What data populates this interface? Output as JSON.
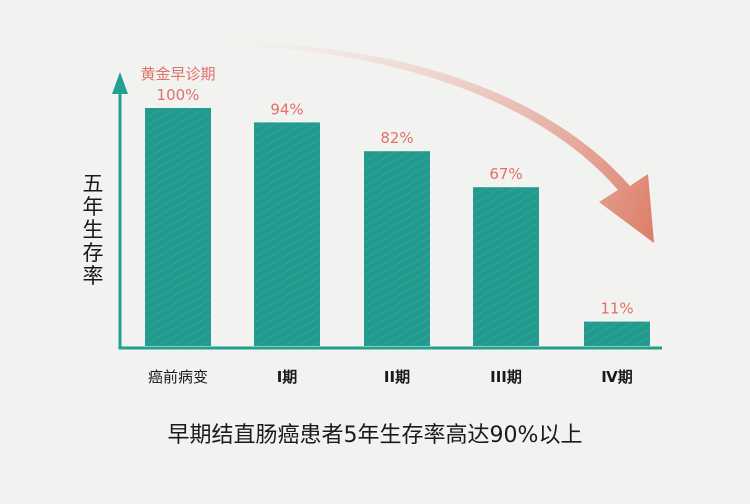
{
  "colors": {
    "bar": "#229b8e",
    "axis": "#21a08f",
    "value_label": "#e0716a",
    "arrow_start": "#f7ece6",
    "arrow_end": "#dc7c66",
    "text": "#1a1a1a",
    "background": "#f2f2f1"
  },
  "chart_data": {
    "type": "bar",
    "title": "早期结直肠癌患者5年生存率高达90%以上",
    "ylabel": "五年生存率",
    "xlabel": "",
    "ylim": [
      0,
      100
    ],
    "categories": [
      "癌前病变",
      "I期",
      "II期",
      "III期",
      "Ⅳ期"
    ],
    "values": [
      100,
      94,
      82,
      67,
      11
    ],
    "value_labels": [
      "100%",
      "94%",
      "82%",
      "67%",
      "11%"
    ],
    "annotations": [
      {
        "text": "黄金早诊期",
        "category": "癌前病变"
      }
    ],
    "trend_arrow": "decreasing",
    "grid": false,
    "legend": "none"
  }
}
